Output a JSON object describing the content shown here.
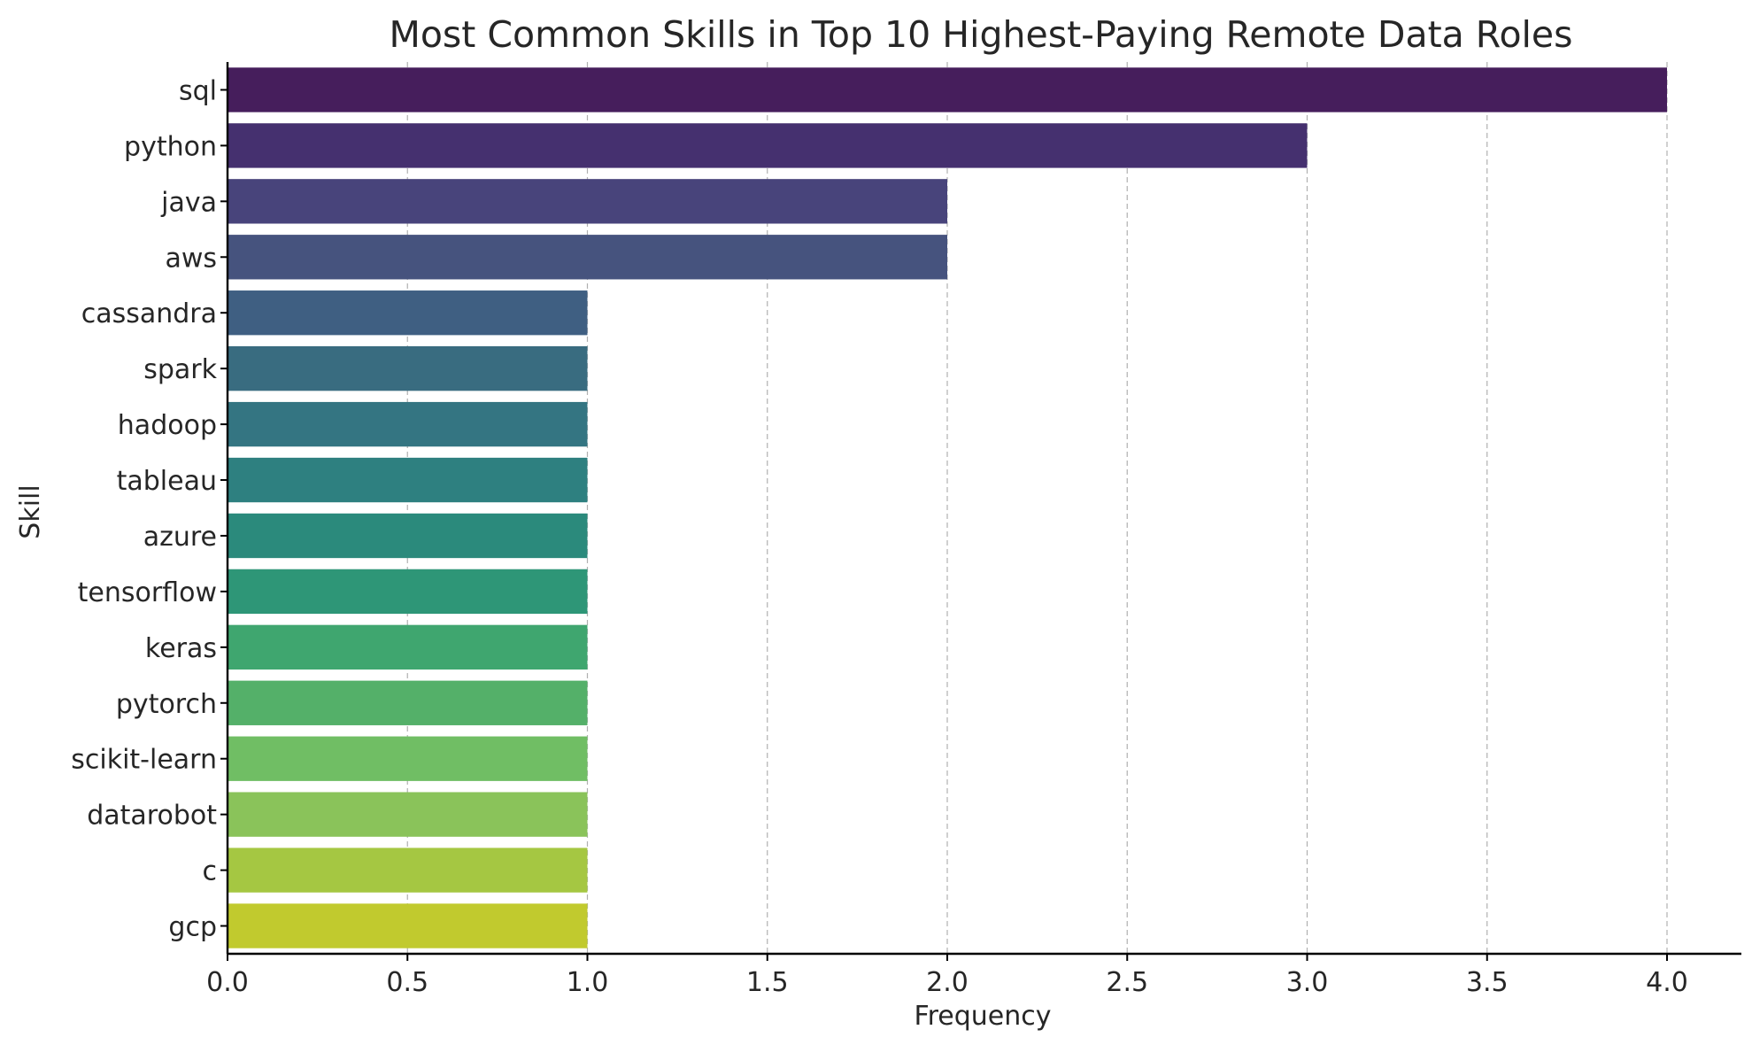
{
  "chart_data": {
    "type": "bar",
    "orientation": "horizontal",
    "title": "Most Common Skills in Top 10 Highest-Paying Remote Data Roles",
    "xlabel": "Frequency",
    "ylabel": "Skill",
    "categories": [
      "sql",
      "python",
      "java",
      "aws",
      "cassandra",
      "spark",
      "hadoop",
      "tableau",
      "azure",
      "tensorflow",
      "keras",
      "pytorch",
      "scikit-learn",
      "datarobot",
      "c",
      "gcp"
    ],
    "values": [
      4,
      3,
      2,
      2,
      1,
      1,
      1,
      1,
      1,
      1,
      1,
      1,
      1,
      1,
      1,
      1
    ],
    "colors": [
      "#461e5c",
      "#45306f",
      "#48447b",
      "#46537e",
      "#3f5f82",
      "#396c80",
      "#347582",
      "#2e8080",
      "#2b8a7c",
      "#2e9677",
      "#3fa66f",
      "#54b069",
      "#70be64",
      "#8ac35a",
      "#a5c742",
      "#c1ca2e"
    ],
    "xlim": [
      0,
      4.2
    ],
    "xticks": [
      0.0,
      0.5,
      1.0,
      1.5,
      2.0,
      2.5,
      3.0,
      3.5,
      4.0
    ],
    "xtick_labels": [
      "0.0",
      "0.5",
      "1.0",
      "1.5",
      "2.0",
      "2.5",
      "3.0",
      "3.5",
      "4.0"
    ],
    "grid": "x-dashed",
    "legend": "none"
  }
}
